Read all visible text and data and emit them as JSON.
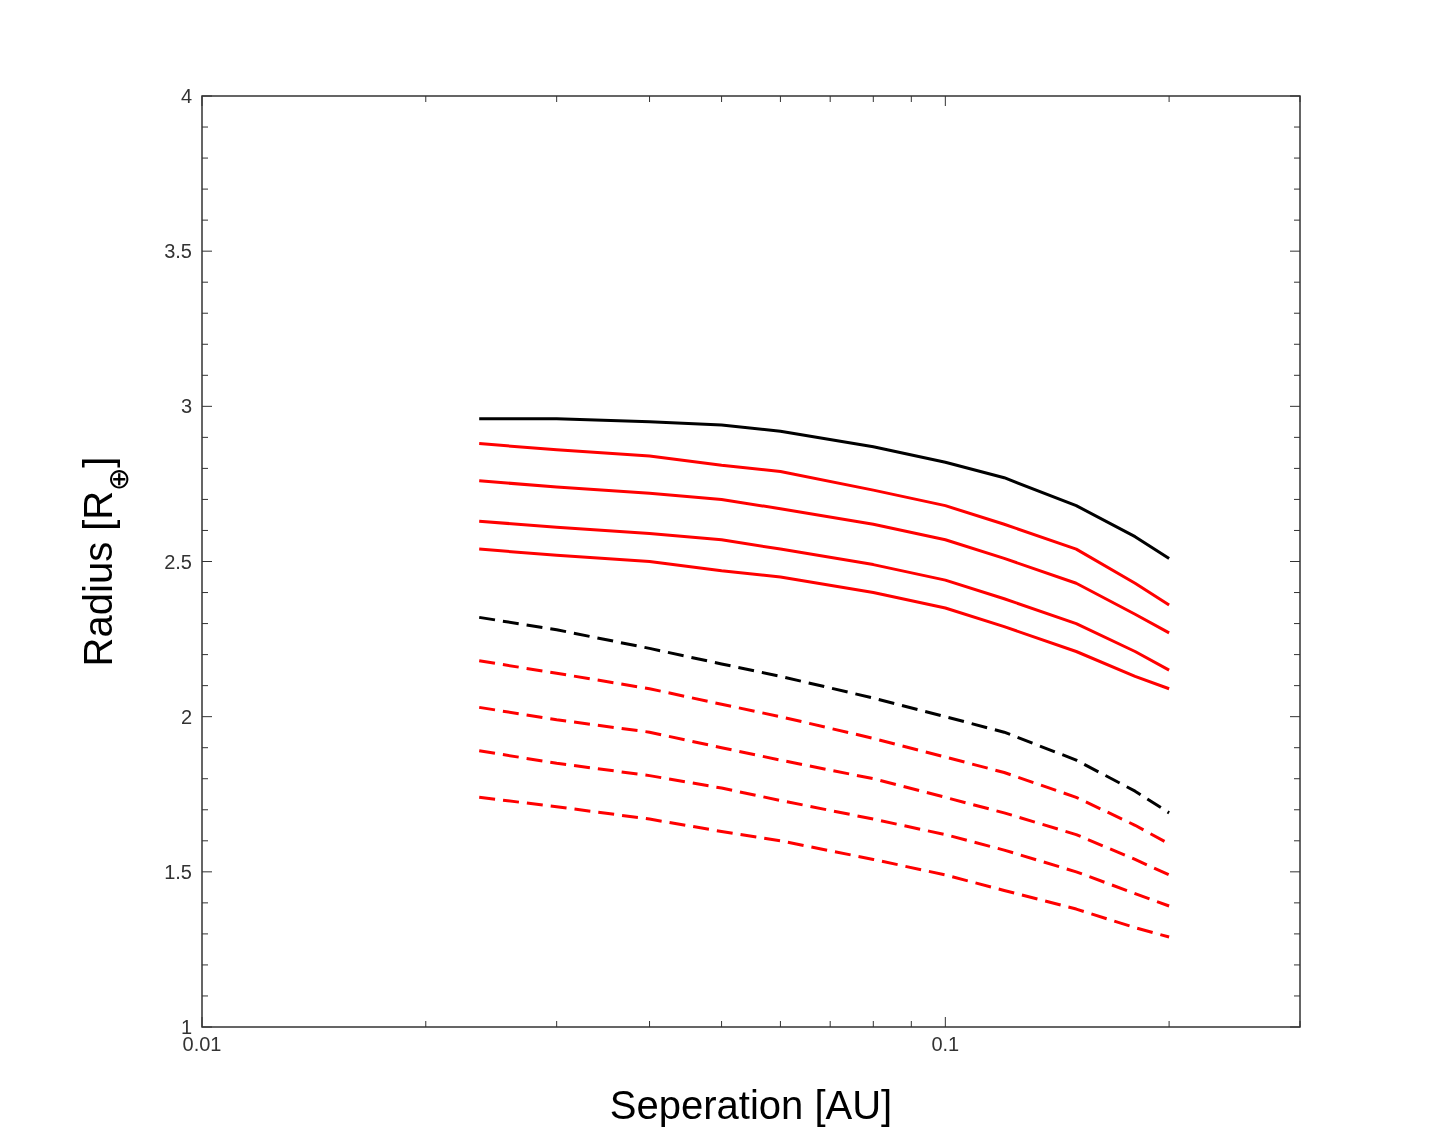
{
  "chart_data": {
    "type": "line",
    "xlabel": "Seperation [AU]",
    "ylabel": "Radius [R$_{⊕}$]",
    "log": "x",
    "xlim": [
      0.01,
      0.3
    ],
    "ylim": [
      1,
      4
    ],
    "xticks": [
      {
        "value": 0.01,
        "label": "0.01"
      },
      {
        "value": 0.02,
        "label": null
      },
      {
        "value": 0.03,
        "label": null
      },
      {
        "value": 0.04,
        "label": null
      },
      {
        "value": 0.05,
        "label": null
      },
      {
        "value": 0.06,
        "label": null
      },
      {
        "value": 0.07,
        "label": null
      },
      {
        "value": 0.08,
        "label": null
      },
      {
        "value": 0.09,
        "label": null
      },
      {
        "value": 0.1,
        "label": "0.1"
      },
      {
        "value": 0.2,
        "label": null
      },
      {
        "value": 0.3,
        "label": null
      }
    ],
    "yticks": [
      1,
      {
        "value": 1.1,
        "label": null
      },
      {
        "value": 1.2,
        "label": null
      },
      {
        "value": 1.3,
        "label": null
      },
      {
        "value": 1.4,
        "label": null
      },
      1.5,
      {
        "value": 1.6,
        "label": null
      },
      {
        "value": 1.7,
        "label": null
      },
      {
        "value": 1.8,
        "label": null
      },
      {
        "value": 1.9,
        "label": null
      },
      2,
      {
        "value": 2.1,
        "label": null
      },
      {
        "value": 2.2,
        "label": null
      },
      {
        "value": 2.3,
        "label": null
      },
      {
        "value": 2.4,
        "label": null
      },
      2.5,
      {
        "value": 2.6,
        "label": null
      },
      {
        "value": 2.7,
        "label": null
      },
      {
        "value": 2.8,
        "label": null
      },
      {
        "value": 2.9,
        "label": null
      },
      3,
      {
        "value": 3.1,
        "label": null
      },
      {
        "value": 3.2,
        "label": null
      },
      {
        "value": 3.3,
        "label": null
      },
      {
        "value": 3.4,
        "label": null
      },
      3.5,
      {
        "value": 3.6,
        "label": null
      },
      {
        "value": 3.7,
        "label": null
      },
      {
        "value": 3.8,
        "label": null
      },
      {
        "value": 3.9,
        "label": null
      },
      4
    ],
    "grid": false,
    "marker": "none",
    "x": [
      0.0236,
      0.03,
      0.04,
      0.05,
      0.06,
      0.08,
      0.1,
      0.12,
      0.15,
      0.18,
      0.2
    ],
    "series": [
      {
        "color": "#000000",
        "line_style": "solid",
        "values": [
          2.96,
          2.96,
          2.95,
          2.94,
          2.92,
          2.87,
          2.82,
          2.77,
          2.68,
          2.58,
          2.51
        ]
      },
      {
        "color": "#ff0000",
        "line_style": "solid",
        "values": [
          2.88,
          2.86,
          2.84,
          2.81,
          2.79,
          2.73,
          2.68,
          2.62,
          2.54,
          2.43,
          2.36
        ]
      },
      {
        "color": "#ff0000",
        "line_style": "solid",
        "values": [
          2.76,
          2.74,
          2.72,
          2.7,
          2.67,
          2.62,
          2.57,
          2.51,
          2.43,
          2.33,
          2.27
        ]
      },
      {
        "color": "#ff0000",
        "line_style": "solid",
        "values": [
          2.63,
          2.61,
          2.59,
          2.57,
          2.54,
          2.49,
          2.44,
          2.38,
          2.3,
          2.21,
          2.15
        ]
      },
      {
        "color": "#ff0000",
        "line_style": "solid",
        "values": [
          2.54,
          2.52,
          2.5,
          2.47,
          2.45,
          2.4,
          2.35,
          2.29,
          2.21,
          2.13,
          2.09
        ]
      },
      {
        "color": "#000000",
        "line_style": "dashed",
        "values": [
          2.32,
          2.28,
          2.22,
          2.17,
          2.13,
          2.06,
          2.0,
          1.95,
          1.86,
          1.76,
          1.69
        ]
      },
      {
        "color": "#ff0000",
        "line_style": "dashed",
        "values": [
          2.18,
          2.14,
          2.09,
          2.04,
          2.0,
          1.93,
          1.87,
          1.82,
          1.74,
          1.65,
          1.59
        ]
      },
      {
        "color": "#ff0000",
        "line_style": "dashed",
        "values": [
          2.03,
          1.99,
          1.95,
          1.9,
          1.86,
          1.8,
          1.74,
          1.69,
          1.62,
          1.54,
          1.49
        ]
      },
      {
        "color": "#ff0000",
        "line_style": "dashed",
        "values": [
          1.89,
          1.85,
          1.81,
          1.77,
          1.73,
          1.67,
          1.62,
          1.57,
          1.5,
          1.43,
          1.39
        ]
      },
      {
        "color": "#ff0000",
        "line_style": "dashed",
        "values": [
          1.74,
          1.71,
          1.67,
          1.63,
          1.6,
          1.54,
          1.49,
          1.44,
          1.38,
          1.32,
          1.29
        ]
      }
    ]
  }
}
